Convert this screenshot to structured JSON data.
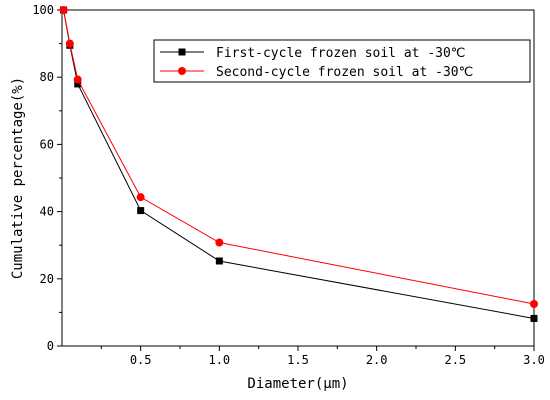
{
  "chart_data": {
    "type": "line",
    "title": "",
    "xlabel": "Diameter(μm)",
    "ylabel": "Cumulative percentage(%)",
    "xlim": [
      0,
      3.0
    ],
    "ylim": [
      0,
      100
    ],
    "x_ticks": [
      0.5,
      1.0,
      1.5,
      2.0,
      2.5,
      3.0
    ],
    "x_tick_labels": [
      "0.5",
      "1.0",
      "1.5",
      "2.0",
      "2.5",
      "3.0"
    ],
    "y_ticks": [
      0,
      20,
      40,
      60,
      80,
      100
    ],
    "y_tick_labels": [
      "0",
      "20",
      "40",
      "60",
      "80",
      "100"
    ],
    "grid": false,
    "legend_position": "top-right",
    "series": [
      {
        "name": "First-cycle frozen soil at -30℃",
        "color": "#000000",
        "marker": "square",
        "x": [
          0.01,
          0.05,
          0.1,
          0.5,
          1.0,
          3.0
        ],
        "y": [
          100,
          89.5,
          78,
          40.3,
          25.3,
          8.2
        ]
      },
      {
        "name": "Second-cycle frozen soil at -30℃",
        "color": "#ff0000",
        "marker": "circle",
        "x": [
          0.01,
          0.05,
          0.1,
          0.5,
          1.0,
          3.0
        ],
        "y": [
          100,
          90,
          79.3,
          44.3,
          30.8,
          12.5
        ]
      }
    ]
  }
}
